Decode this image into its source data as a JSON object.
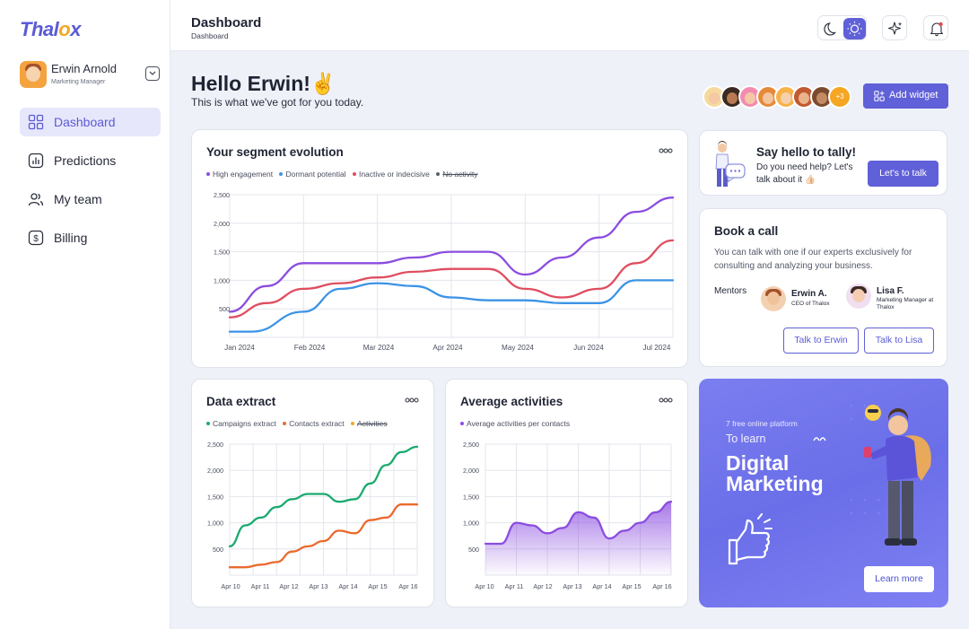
{
  "brand": {
    "name_main": "Thal",
    "name_accent": "o",
    "name_end": "x",
    "color": "#5b5bd6",
    "accent": "#f5a623"
  },
  "user": {
    "name": "Erwin Arnold",
    "role": "Marketing Manager"
  },
  "nav": {
    "items": [
      {
        "label": "Dashboard",
        "icon": "grid-icon",
        "active": true
      },
      {
        "label": "Predictions",
        "icon": "bar-chart-icon",
        "active": false
      },
      {
        "label": "My team",
        "icon": "users-icon",
        "active": false
      },
      {
        "label": "Billing",
        "icon": "dollar-icon",
        "active": false
      }
    ]
  },
  "header": {
    "title": "Dashboard",
    "breadcrumb": "Dashboard"
  },
  "greeting": {
    "title": "Hello Erwin!✌️",
    "subtitle": "This is what we've got for you today."
  },
  "team": {
    "more_count": "+3"
  },
  "actions": {
    "add_widget": "Add widget"
  },
  "segment": {
    "title": "Your segment evolution",
    "legend": [
      {
        "label": "High engagement",
        "color": "#8b4de0",
        "struck": false
      },
      {
        "label": "Dormant potential",
        "color": "#3b93e6",
        "struck": false
      },
      {
        "label": "Inactive or indecisive",
        "color": "#e04d5f",
        "struck": false
      },
      {
        "label": "No activity",
        "color": "#5a5f6e",
        "struck": true
      }
    ]
  },
  "extract": {
    "title": "Data extract",
    "legend": [
      {
        "label": "Campaigns extract",
        "color": "#1aaa6e",
        "struck": false
      },
      {
        "label": "Contacts extract",
        "color": "#ea6a2e",
        "struck": false
      },
      {
        "label": "Activities",
        "color": "#f5a623",
        "struck": true
      }
    ]
  },
  "activities": {
    "title": "Average activities",
    "legend": [
      {
        "label": "Average activities per contacts",
        "color": "#8b4de0",
        "struck": false
      }
    ]
  },
  "chart_data": [
    {
      "type": "line",
      "title": "Your segment evolution",
      "x": [
        "Jan 2024",
        "Feb 2024",
        "Mar 2024",
        "Apr 2024",
        "May 2024",
        "Jun 2024",
        "Jul 2024"
      ],
      "ylim": [
        0,
        2500
      ],
      "yticks": [
        "500",
        "1,000",
        "1,500",
        "2,000",
        "2,500"
      ],
      "grid": true,
      "legend": "top-left",
      "series": [
        {
          "name": "High engagement",
          "color": "#8b4de0",
          "points": [
            [
              0,
              450
            ],
            [
              0.5,
              900
            ],
            [
              1,
              1300
            ],
            [
              1.5,
              1300
            ],
            [
              2,
              1300
            ],
            [
              2.5,
              1400
            ],
            [
              3,
              1500
            ],
            [
              3.5,
              1500
            ],
            [
              4,
              1100
            ],
            [
              4.5,
              1400
            ],
            [
              5,
              1750
            ],
            [
              5.5,
              2200
            ],
            [
              6,
              2450
            ]
          ]
        },
        {
          "name": "Dormant potential",
          "color": "#3b93e6",
          "points": [
            [
              0,
              100
            ],
            [
              0.3,
              100
            ],
            [
              1,
              450
            ],
            [
              1.5,
              850
            ],
            [
              2,
              950
            ],
            [
              2.5,
              900
            ],
            [
              3,
              700
            ],
            [
              3.5,
              650
            ],
            [
              4,
              650
            ],
            [
              4.5,
              600
            ],
            [
              5,
              600
            ],
            [
              5.5,
              1000
            ],
            [
              6,
              1000
            ]
          ]
        },
        {
          "name": "Inactive or indecisive",
          "color": "#e04d5f",
          "points": [
            [
              0,
              350
            ],
            [
              0.5,
              600
            ],
            [
              1,
              850
            ],
            [
              1.5,
              950
            ],
            [
              2,
              1050
            ],
            [
              2.5,
              1150
            ],
            [
              3,
              1200
            ],
            [
              3.5,
              1200
            ],
            [
              4,
              850
            ],
            [
              4.5,
              700
            ],
            [
              5,
              850
            ],
            [
              5.5,
              1300
            ],
            [
              6,
              1700
            ]
          ]
        }
      ]
    },
    {
      "type": "line",
      "title": "Data extract",
      "x": [
        "Apr 10",
        "Apr 11",
        "Apr 12",
        "Apr 13",
        "Apr 14",
        "Apr 15",
        "Apr 16"
      ],
      "ylim": [
        0,
        2500
      ],
      "yticks": [
        "500",
        "1,000",
        "1,500",
        "2,000",
        "2,500"
      ],
      "grid": true,
      "legend": "top-left",
      "series": [
        {
          "name": "Campaigns extract",
          "color": "#1aaa6e",
          "points": [
            [
              0,
              550
            ],
            [
              0.5,
              950
            ],
            [
              1,
              1100
            ],
            [
              1.5,
              1300
            ],
            [
              2,
              1450
            ],
            [
              2.5,
              1550
            ],
            [
              3,
              1550
            ],
            [
              3.5,
              1400
            ],
            [
              4,
              1450
            ],
            [
              4.5,
              1750
            ],
            [
              5,
              2100
            ],
            [
              5.5,
              2350
            ],
            [
              6,
              2450
            ]
          ]
        },
        {
          "name": "Contacts extract",
          "color": "#ea6a2e",
          "points": [
            [
              0,
              150
            ],
            [
              0.5,
              150
            ],
            [
              1,
              200
            ],
            [
              1.5,
              250
            ],
            [
              2,
              450
            ],
            [
              2.5,
              550
            ],
            [
              3,
              650
            ],
            [
              3.5,
              850
            ],
            [
              4,
              800
            ],
            [
              4.5,
              1050
            ],
            [
              5,
              1100
            ],
            [
              5.5,
              1350
            ],
            [
              6,
              1350
            ]
          ]
        }
      ]
    },
    {
      "type": "area",
      "title": "Average activities",
      "x": [
        "Apr 10",
        "Apr 11",
        "Apr 12",
        "Apr 13",
        "Apr 14",
        "Apr 15",
        "Apr 16"
      ],
      "ylim": [
        0,
        2500
      ],
      "yticks": [
        "500",
        "1,000",
        "1,500",
        "2,000",
        "2,500"
      ],
      "grid": true,
      "legend": "top-left",
      "series": [
        {
          "name": "Average activities per contacts",
          "color": "#8b4de0",
          "points": [
            [
              0,
              600
            ],
            [
              0.5,
              600
            ],
            [
              1,
              1000
            ],
            [
              1.5,
              950
            ],
            [
              2,
              800
            ],
            [
              2.5,
              900
            ],
            [
              3,
              1200
            ],
            [
              3.5,
              1100
            ],
            [
              4,
              700
            ],
            [
              4.5,
              850
            ],
            [
              5,
              1000
            ],
            [
              5.5,
              1200
            ],
            [
              6,
              1400
            ]
          ]
        }
      ]
    }
  ],
  "tally": {
    "title": "Say hello to tally!",
    "text": "Do you need help? Let's talk about it 👍🏻",
    "button": "Let's to talk"
  },
  "book": {
    "title": "Book a call",
    "description": "You can talk with one if our experts exclusively for consulting and analyzing your business.",
    "mentors_label": "Mentors",
    "mentors": [
      {
        "name": "Erwin A.",
        "role": "CEO of Thalox"
      },
      {
        "name": "Lisa F.",
        "role": "Marketing Manager at Thalox"
      }
    ],
    "talk_erwin": "Talk to Erwin",
    "talk_lisa": "Talk to Lisa"
  },
  "promo": {
    "line1": "7 free online platform",
    "line2": "To learn",
    "headline": "Digital Marketing",
    "button": "Learn more"
  }
}
